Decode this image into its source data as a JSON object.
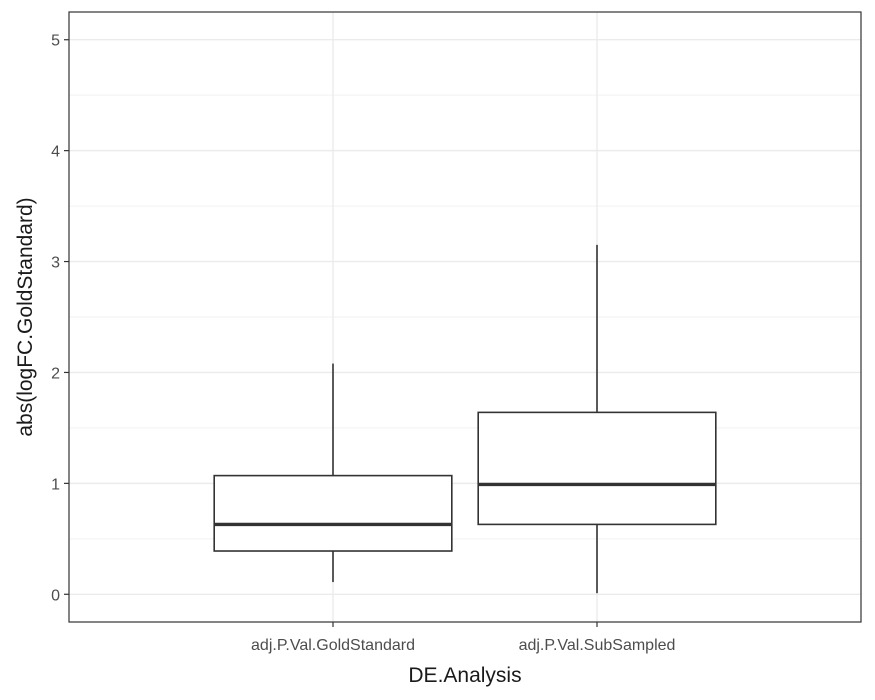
{
  "chart_data": {
    "type": "boxplot",
    "xlabel": "DE.Analysis",
    "ylabel": "abs(logFC.GoldStandard)",
    "categories": [
      "adj.P.Val.GoldStandard",
      "adj.P.Val.SubSampled"
    ],
    "boxes": [
      {
        "category": "adj.P.Val.GoldStandard",
        "whisker_low": 0.11,
        "q1": 0.39,
        "median": 0.63,
        "q3": 1.07,
        "whisker_high": 2.08
      },
      {
        "category": "adj.P.Val.SubSampled",
        "whisker_low": 0.01,
        "q1": 0.63,
        "median": 0.99,
        "q3": 1.64,
        "whisker_high": 3.15
      }
    ],
    "ylim": [
      -0.25,
      5.25
    ],
    "yticks": [
      0,
      1,
      2,
      3,
      4,
      5
    ],
    "ytick_labels": [
      "0",
      "1",
      "2",
      "3",
      "4",
      "5"
    ],
    "grid": true,
    "theme": "bw",
    "colors": {
      "panel_border": "#333333",
      "grid_major": "#ebebeb",
      "grid_minor": "#f2f2f2",
      "box_stroke": "#333333",
      "box_fill": "#ffffff",
      "tick_text": "#4d4d4d",
      "title_text": "#1a1a1a"
    }
  }
}
